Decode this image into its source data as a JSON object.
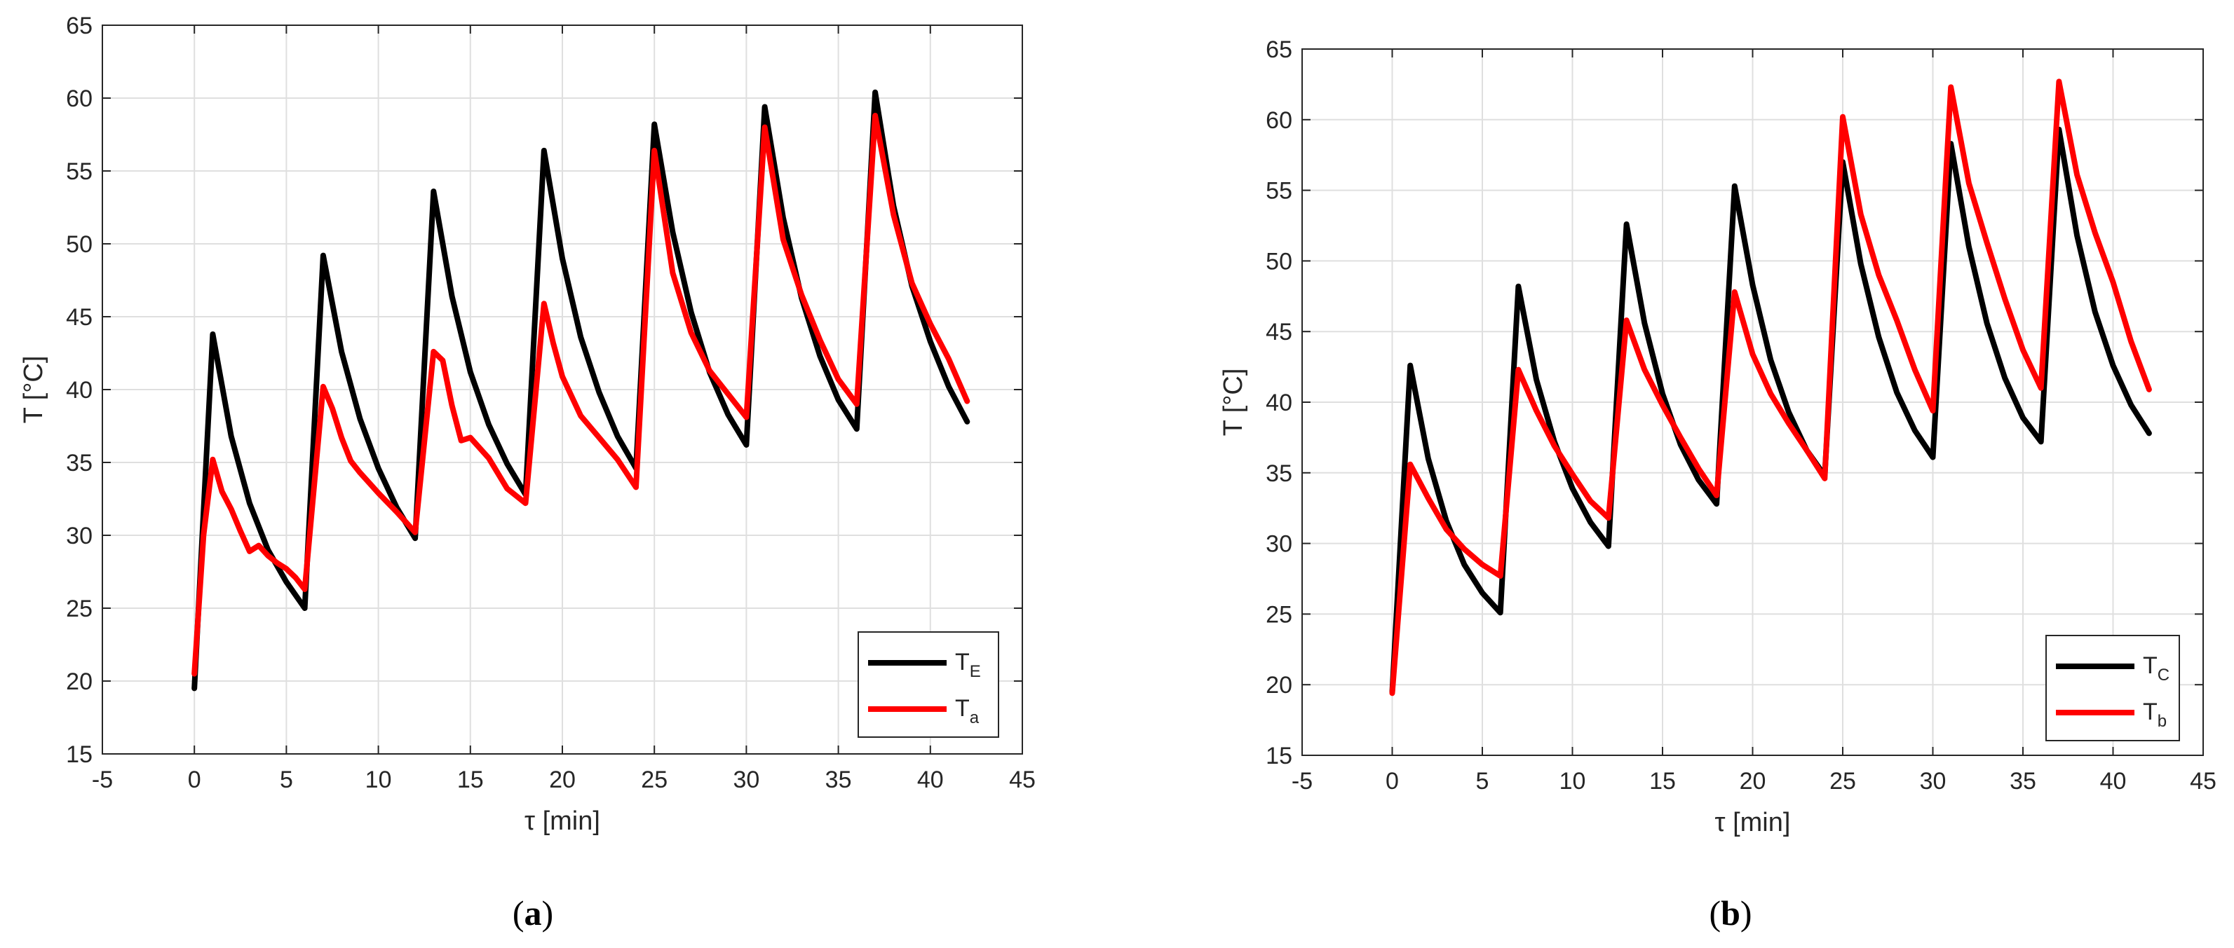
{
  "chart_data": [
    {
      "type": "line",
      "panel_label": "(a)",
      "ylabel": "T [°C]",
      "xlabel": "τ [min]",
      "xlim": [
        -5,
        45
      ],
      "ylim": [
        15,
        65
      ],
      "xticks": [
        -5,
        0,
        5,
        10,
        15,
        20,
        25,
        30,
        35,
        40,
        45
      ],
      "yticks": [
        15,
        20,
        25,
        30,
        35,
        40,
        45,
        50,
        55,
        60,
        65
      ],
      "grid": true,
      "legend_position": "bottom-right",
      "series": [
        {
          "name": "T_E",
          "label_main": "T",
          "label_sub": "E",
          "color": "#000000",
          "x": [
            0,
            1,
            2,
            3,
            4,
            5,
            6,
            7,
            8,
            9,
            10,
            11,
            12,
            13,
            14,
            15,
            16,
            17,
            18,
            19,
            20,
            21,
            22,
            23,
            24,
            25,
            26,
            27,
            28,
            29,
            30,
            31,
            32,
            33,
            34,
            35,
            36,
            37,
            38,
            39,
            40,
            41,
            42
          ],
          "y": [
            19.5,
            43.8,
            36.8,
            32.2,
            29.0,
            26.8,
            25.0,
            49.2,
            42.6,
            38.0,
            34.6,
            31.9,
            29.8,
            53.6,
            46.4,
            41.2,
            37.6,
            34.9,
            32.8,
            56.4,
            49.0,
            43.6,
            39.8,
            36.8,
            34.6,
            58.2,
            50.8,
            45.3,
            41.2,
            38.3,
            36.2,
            59.4,
            51.8,
            46.3,
            42.3,
            39.3,
            37.3,
            60.4,
            52.6,
            47.1,
            43.3,
            40.2,
            37.8
          ]
        },
        {
          "name": "T_a",
          "label_main": "T",
          "label_sub": "a",
          "color": "#ff0000",
          "x": [
            0,
            0.5,
            1,
            1.5,
            2,
            2.5,
            3,
            3.5,
            4,
            4.5,
            5,
            5.5,
            6,
            7,
            7.5,
            8,
            8.5,
            9,
            9.5,
            10,
            11,
            12,
            13,
            13.5,
            14,
            14.5,
            15,
            16,
            17,
            18,
            19,
            19.5,
            20,
            21,
            22,
            23,
            24,
            25,
            26,
            27,
            28,
            29,
            30,
            31,
            32,
            33,
            34,
            35,
            36,
            37,
            38,
            39,
            40,
            41,
            42
          ],
          "y": [
            20.5,
            30.0,
            35.2,
            33.0,
            31.8,
            30.3,
            28.9,
            29.3,
            28.6,
            28.1,
            27.7,
            27.1,
            26.3,
            40.2,
            38.7,
            36.7,
            35.1,
            34.3,
            33.6,
            32.9,
            31.6,
            30.2,
            42.6,
            42.0,
            38.9,
            36.5,
            36.7,
            35.3,
            33.2,
            32.2,
            45.9,
            43.2,
            40.9,
            38.2,
            36.7,
            35.2,
            33.3,
            56.4,
            48.0,
            43.9,
            41.3,
            39.7,
            38.1,
            58.0,
            50.3,
            46.5,
            43.4,
            40.7,
            39.0,
            58.8,
            52.0,
            47.3,
            44.5,
            42.1,
            39.2
          ]
        }
      ]
    },
    {
      "type": "line",
      "panel_label": "(b)",
      "ylabel": "T [°C]",
      "xlabel": "τ [min]",
      "xlim": [
        -5,
        45
      ],
      "ylim": [
        15,
        65
      ],
      "xticks": [
        -5,
        0,
        5,
        10,
        15,
        20,
        25,
        30,
        35,
        40,
        45
      ],
      "yticks": [
        15,
        20,
        25,
        30,
        35,
        40,
        45,
        50,
        55,
        60,
        65
      ],
      "grid": true,
      "legend_position": "bottom-right",
      "series": [
        {
          "name": "T_C",
          "label_main": "T",
          "label_sub": "C",
          "color": "#000000",
          "x": [
            0,
            1,
            2,
            3,
            4,
            5,
            6,
            7,
            8,
            9,
            10,
            11,
            12,
            13,
            14,
            15,
            16,
            17,
            18,
            19,
            20,
            21,
            22,
            23,
            24,
            25,
            26,
            27,
            28,
            29,
            30,
            31,
            32,
            33,
            34,
            35,
            36,
            37,
            38,
            39,
            40,
            41,
            42
          ],
          "y": [
            19.5,
            42.6,
            36.0,
            31.6,
            28.5,
            26.5,
            25.1,
            48.2,
            41.6,
            37.2,
            33.9,
            31.5,
            29.8,
            52.6,
            45.6,
            40.6,
            37.0,
            34.5,
            32.8,
            55.3,
            48.3,
            43.0,
            39.3,
            36.6,
            34.8,
            57.0,
            49.8,
            44.6,
            40.7,
            38.0,
            36.1,
            58.3,
            51.0,
            45.6,
            41.7,
            38.9,
            37.2,
            59.3,
            51.8,
            46.4,
            42.6,
            39.8,
            37.8
          ]
        },
        {
          "name": "T_b",
          "label_main": "T",
          "label_sub": "b",
          "color": "#ff0000",
          "x": [
            0,
            1,
            2,
            3,
            4,
            5,
            6,
            7,
            8,
            9,
            10,
            11,
            12,
            13,
            14,
            15,
            16,
            17,
            18,
            19,
            20,
            21,
            22,
            23,
            24,
            25,
            26,
            27,
            28,
            29,
            30,
            31,
            32,
            33,
            34,
            35,
            36,
            37,
            38,
            39,
            40,
            41,
            42
          ],
          "y": [
            19.4,
            35.6,
            33.2,
            31.0,
            29.6,
            28.5,
            27.7,
            42.3,
            39.4,
            36.9,
            34.9,
            33.0,
            31.8,
            45.8,
            42.3,
            39.8,
            37.5,
            35.3,
            33.4,
            47.8,
            43.4,
            40.6,
            38.5,
            36.6,
            34.6,
            60.2,
            53.3,
            49.0,
            45.8,
            42.3,
            39.4,
            62.3,
            55.5,
            51.3,
            47.3,
            43.7,
            41.0,
            62.7,
            56.1,
            52.0,
            48.5,
            44.3,
            40.9
          ]
        }
      ]
    }
  ]
}
